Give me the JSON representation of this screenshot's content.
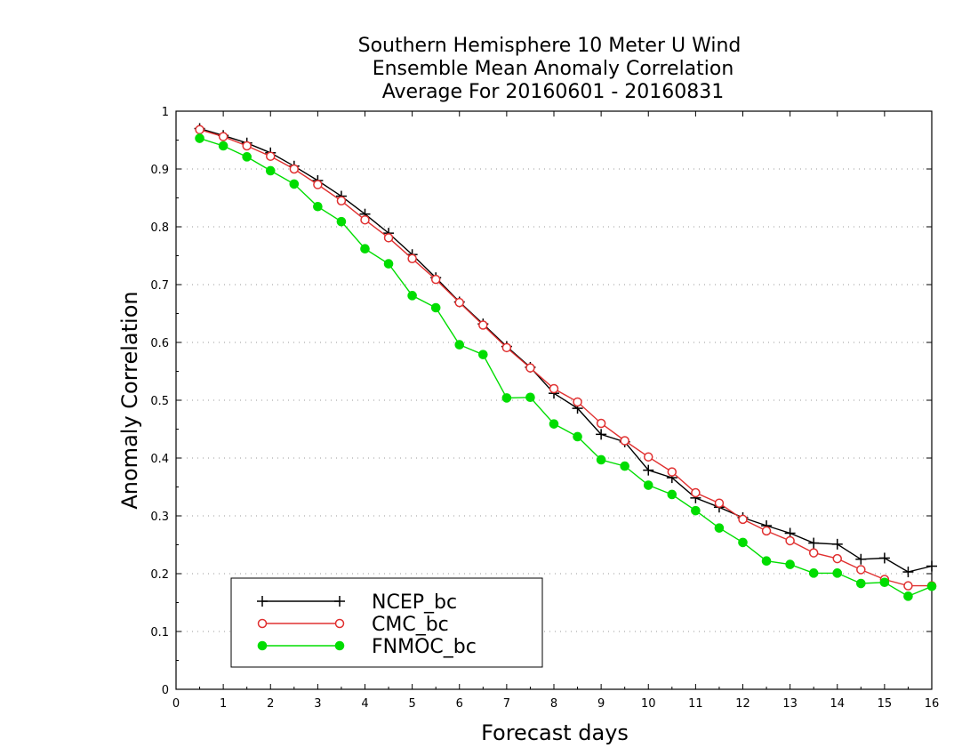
{
  "chart_data": {
    "type": "line",
    "title": [
      "Southern Hemisphere 10 Meter U Wind",
      "Ensemble Mean Anomaly Correlation",
      "Average For 20160601 - 20160831"
    ],
    "xlabel": "Forecast days",
    "ylabel": "Anomaly Correlation",
    "xlim": [
      0,
      16
    ],
    "ylim": [
      0,
      1
    ],
    "xticks": [
      "0",
      "1",
      "2",
      "3",
      "4",
      "5",
      "6",
      "7",
      "8",
      "9",
      "10",
      "11",
      "12",
      "13",
      "14",
      "15",
      "16"
    ],
    "yticks": [
      "0",
      "0.1",
      "0.2",
      "0.3",
      "0.4",
      "0.5",
      "0.6",
      "0.7",
      "0.8",
      "0.9",
      "1"
    ],
    "grid": "horizontal dotted",
    "legend_position": "bottom-left",
    "x": [
      0.5,
      1,
      1.5,
      2,
      2.5,
      3,
      3.5,
      4,
      4.5,
      5,
      5.5,
      6,
      6.5,
      7,
      7.5,
      8,
      8.5,
      9,
      9.5,
      10,
      10.5,
      11,
      11.5,
      12,
      12.5,
      13,
      13.5,
      14,
      14.5,
      15,
      15.5,
      16
    ],
    "series": [
      {
        "name": "NCEP_bc",
        "color": "#000000",
        "marker": "plus",
        "values": [
          0.97,
          0.958,
          0.945,
          0.928,
          0.905,
          0.88,
          0.853,
          0.822,
          0.789,
          0.752,
          0.712,
          0.67,
          0.632,
          0.593,
          0.557,
          0.512,
          0.486,
          0.441,
          0.428,
          0.379,
          0.366,
          0.331,
          0.315,
          0.297,
          0.283,
          0.27,
          0.253,
          0.251,
          0.225,
          0.227,
          0.203,
          0.213
        ]
      },
      {
        "name": "CMC_bc",
        "color": "#e03030",
        "marker": "open-circle",
        "values": [
          0.968,
          0.956,
          0.94,
          0.922,
          0.9,
          0.873,
          0.845,
          0.812,
          0.781,
          0.745,
          0.709,
          0.669,
          0.63,
          0.591,
          0.556,
          0.52,
          0.497,
          0.46,
          0.43,
          0.402,
          0.376,
          0.34,
          0.322,
          0.294,
          0.274,
          0.257,
          0.236,
          0.226,
          0.207,
          0.19,
          0.179,
          0.179
        ]
      },
      {
        "name": "FNMOC_bc",
        "color": "#00dd00",
        "marker": "filled-circle",
        "values": [
          0.953,
          0.94,
          0.921,
          0.897,
          0.874,
          0.835,
          0.809,
          0.762,
          0.736,
          0.681,
          0.66,
          0.596,
          0.579,
          0.504,
          0.505,
          0.459,
          0.437,
          0.397,
          0.386,
          0.353,
          0.337,
          0.309,
          0.279,
          0.254,
          0.222,
          0.216,
          0.201,
          0.201,
          0.183,
          0.185,
          0.161,
          0.178
        ]
      }
    ]
  }
}
